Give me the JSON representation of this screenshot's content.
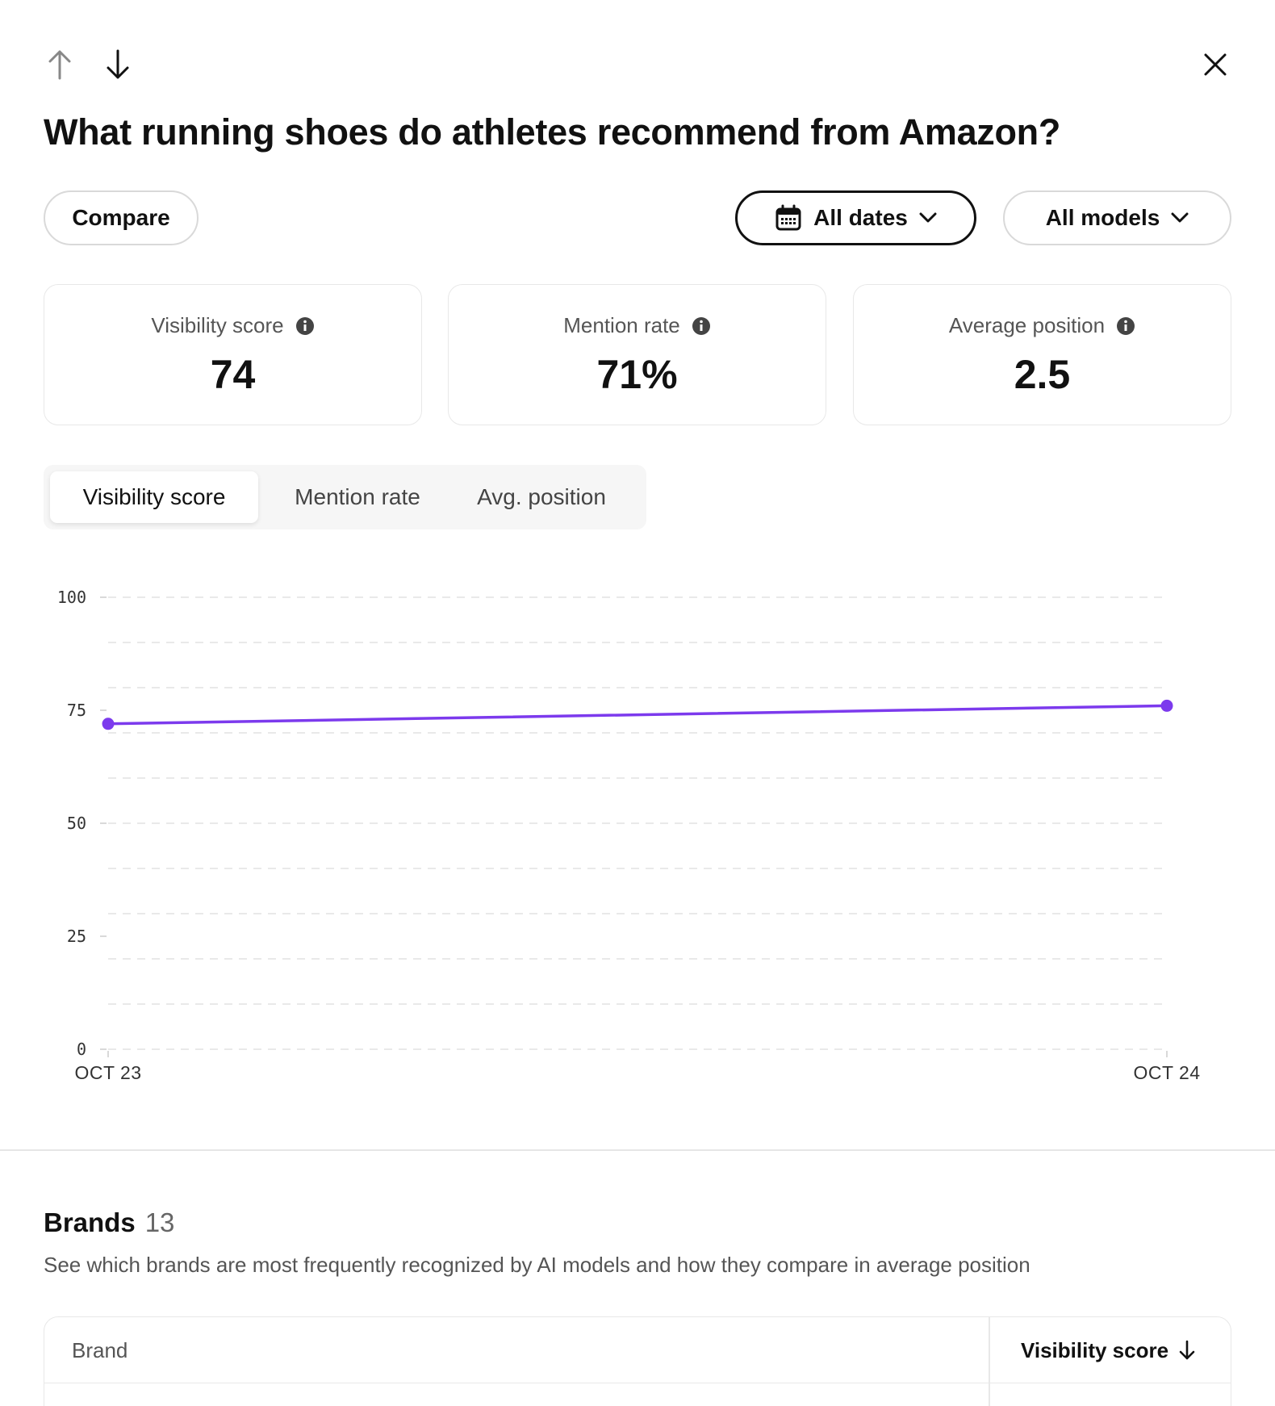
{
  "header": {
    "title": "What running shoes do athletes recommend from Amazon?"
  },
  "toolbar": {
    "compare_label": "Compare",
    "dates_label": "All dates",
    "models_label": "All models"
  },
  "stats": [
    {
      "label": "Visibility score",
      "value": "74"
    },
    {
      "label": "Mention rate",
      "value": "71%"
    },
    {
      "label": "Average position",
      "value": "2.5"
    }
  ],
  "tabs": [
    {
      "label": "Visibility score",
      "active": true
    },
    {
      "label": "Mention rate",
      "active": false
    },
    {
      "label": "Avg. position",
      "active": false
    }
  ],
  "colors": {
    "series": "#7c3aed",
    "grid": "#e2e2e2"
  },
  "chart_data": {
    "type": "line",
    "title": "",
    "xlabel": "",
    "ylabel": "",
    "x": [
      "OCT 23",
      "OCT 24"
    ],
    "series": [
      {
        "values": [
          72,
          76
        ]
      }
    ],
    "ylim": [
      0,
      100
    ],
    "yticks": [
      "0",
      "25",
      "50",
      "75",
      "100"
    ],
    "grid": true
  },
  "brands": {
    "title": "Brands",
    "count": "13",
    "description": "See which brands are most frequently recognized by AI models and how they compare in average position",
    "table": {
      "col_brand": "Brand",
      "col_visibility": "Visibility score"
    }
  },
  "icons": {
    "up": "arrow-up-icon",
    "down": "arrow-down-icon",
    "close": "close-icon",
    "calendar": "calendar-icon",
    "chevron": "chevron-down-icon",
    "info": "info-icon",
    "sort": "sort-arrow-down-icon"
  }
}
